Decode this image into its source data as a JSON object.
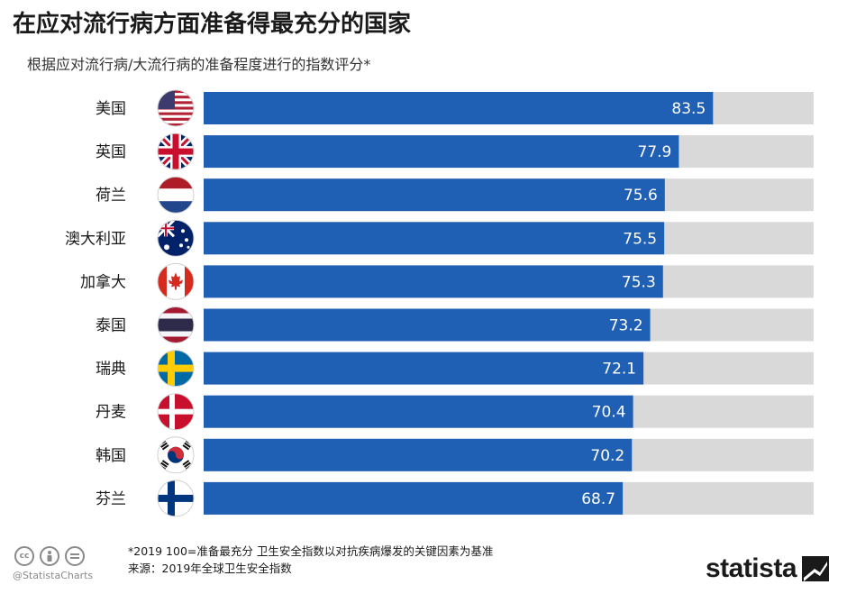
{
  "header": {
    "title": "在应对流行病方面准备得最充分的国家",
    "subtitle": "根据应对流行病/大流行病的准备程度进行的指数评分*"
  },
  "chart_data": {
    "type": "bar",
    "orientation": "horizontal",
    "title": "在应对流行病方面准备得最充分的国家",
    "subtitle": "根据应对流行病/大流行病的准备程度进行的指数评分*",
    "categories": [
      "美国",
      "英国",
      "荷兰",
      "澳大利亚",
      "加拿大",
      "泰国",
      "瑞典",
      "丹麦",
      "韩国",
      "芬兰"
    ],
    "values": [
      83.5,
      77.9,
      75.6,
      75.5,
      75.3,
      73.2,
      72.1,
      70.4,
      70.2,
      68.7
    ],
    "value_labels": [
      "83.5",
      "77.9",
      "75.6",
      "75.5",
      "75.3",
      "73.2",
      "72.1",
      "70.4",
      "70.2",
      "68.7"
    ],
    "flags": [
      "us",
      "uk",
      "nl",
      "au",
      "ca",
      "th",
      "se",
      "dk",
      "kr",
      "fi"
    ],
    "xlim": [
      0,
      100
    ],
    "bar_color": "#1f5fb4",
    "track_color": "#d9d9d9"
  },
  "footer": {
    "note": "*2019 100=准备最充分 卫生安全指数以对抗疾病爆发的关键因素为基准",
    "source": "来源：2019年全球卫生安全指数",
    "handle": "@StatistaCharts",
    "brand": "statista",
    "cc_icons": [
      "cc",
      "by",
      "nd"
    ]
  }
}
